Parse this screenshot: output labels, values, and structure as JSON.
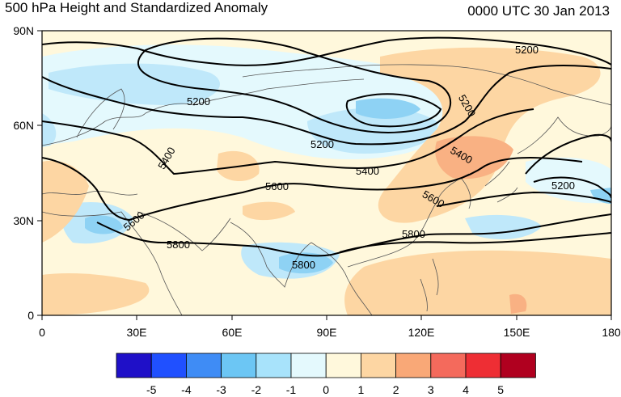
{
  "header": {
    "title": "500 hPa Height and Standardized Anomaly",
    "date": "0000 UTC 30 Jan 2013"
  },
  "map": {
    "projection": "cylindrical equidistant",
    "lon_range": [
      0,
      180
    ],
    "lat_range": [
      0,
      90
    ],
    "lon_ticks": [
      "0",
      "30E",
      "60E",
      "90E",
      "120E",
      "150E",
      "180"
    ],
    "lat_ticks": [
      "90N",
      "60N",
      "30N",
      "0"
    ]
  },
  "contours": {
    "variable": "500 hPa geopotential height",
    "labels": [
      "5200",
      "5200",
      "5200",
      "5200",
      "5200",
      "5400",
      "5400",
      "5400",
      "5600",
      "5600",
      "5600",
      "5800",
      "5800",
      "5800"
    ]
  },
  "colorbar": {
    "ticks": [
      "-5",
      "-4",
      "-3",
      "-2",
      "-1",
      "0",
      "1",
      "2",
      "3",
      "4",
      "5"
    ],
    "colors": [
      "#1f10c8",
      "#2050ff",
      "#3f8cf5",
      "#6cc6f4",
      "#a8e3fb",
      "#e4f9fd",
      "#fff8dc",
      "#fdd6a3",
      "#f9a877",
      "#f46a5c",
      "#ee2e34",
      "#b0001f"
    ]
  },
  "anomaly_colors": {
    "background": "#fff8dc",
    "minus1": "#e4f9fd",
    "minus2": "#bfe8fa",
    "minus3": "#8ed2f4",
    "plus2": "#fdd6a3",
    "plus3": "#f9b183"
  }
}
